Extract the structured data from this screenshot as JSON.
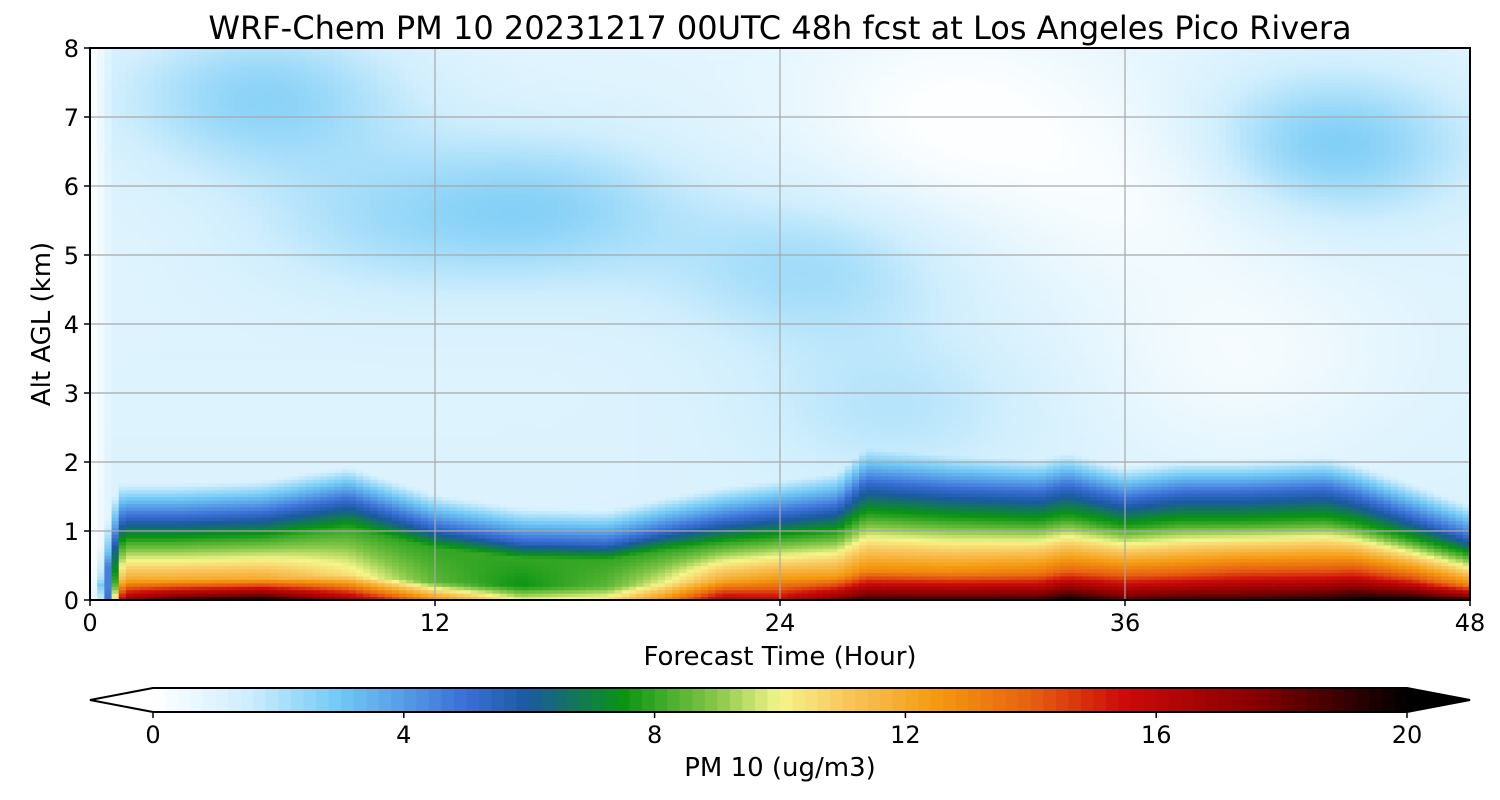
{
  "chart_data": {
    "type": "heatmap",
    "title": "WRF-Chem PM 10  20231217 00UTC 48h fcst at Los Angeles Pico Rivera",
    "xlabel": "Forecast Time (Hour)",
    "ylabel": "Alt AGL (km)",
    "xlim": [
      0,
      48
    ],
    "ylim": [
      0,
      8
    ],
    "x_ticks": [
      "0",
      "12",
      "24",
      "36",
      "48"
    ],
    "y_ticks": [
      "0",
      "1",
      "2",
      "3",
      "4",
      "5",
      "6",
      "7",
      "8"
    ],
    "grid": true,
    "colorbar": {
      "label": "PM 10  (ug/m3)",
      "range": [
        0,
        20
      ],
      "ticks": [
        "0",
        "4",
        "8",
        "12",
        "16",
        "20"
      ],
      "extend": "both",
      "stops": [
        {
          "v": 0,
          "color": "#ffffff"
        },
        {
          "v": 1.5,
          "color": "#cfeefd"
        },
        {
          "v": 3,
          "color": "#70c8f5"
        },
        {
          "v": 5,
          "color": "#3a6fd6"
        },
        {
          "v": 6,
          "color": "#1a5aa0"
        },
        {
          "v": 7.5,
          "color": "#0a9412"
        },
        {
          "v": 9,
          "color": "#88c84a"
        },
        {
          "v": 10,
          "color": "#f5f58a"
        },
        {
          "v": 11,
          "color": "#f8c860"
        },
        {
          "v": 12.5,
          "color": "#f59a10"
        },
        {
          "v": 14,
          "color": "#e66010"
        },
        {
          "v": 15.5,
          "color": "#cc0a0a"
        },
        {
          "v": 17.5,
          "color": "#8a0000"
        },
        {
          "v": 20,
          "color": "#000000"
        }
      ]
    },
    "profile_hours": [
      0,
      0.3,
      0.7,
      1,
      3,
      6,
      9,
      12,
      15,
      18,
      20,
      22,
      24,
      26,
      27,
      30,
      33,
      34,
      36,
      38,
      40,
      43,
      44,
      46,
      48
    ],
    "profile_top_km": [
      0,
      0.2,
      0.8,
      1.2,
      1.2,
      1.25,
      1.45,
      1.05,
      0.85,
      0.82,
      1.0,
      1.15,
      1.25,
      1.35,
      1.7,
      1.6,
      1.55,
      1.65,
      1.45,
      1.55,
      1.55,
      1.6,
      1.5,
      1.2,
      0.9
    ],
    "profile_surface_ugm3": [
      0,
      3,
      10,
      17,
      19,
      20,
      17,
      13,
      10,
      10.5,
      13,
      16.5,
      16,
      18,
      19,
      19,
      19,
      20,
      18.5,
      19,
      19,
      19.5,
      20,
      20,
      19
    ],
    "profile_midlayer_ugm3": [
      0,
      4,
      9,
      12,
      12,
      12,
      10.5,
      8.5,
      7.5,
      8.5,
      10,
      12,
      12.5,
      12.5,
      13,
      13,
      13.5,
      14,
      14,
      14,
      14.5,
      14.5,
      15,
      14.5,
      13
    ],
    "aloft_blobs": [
      {
        "hour": 6,
        "km": 7.3,
        "peak_ugm3": 1.6
      },
      {
        "hour": 16,
        "km": 5.7,
        "peak_ugm3": 1.4
      },
      {
        "hour": 25,
        "km": 4.8,
        "peak_ugm3": 1.2
      },
      {
        "hour": 43,
        "km": 6.6,
        "peak_ugm3": 1.9
      },
      {
        "hour": 10,
        "km": 5.5,
        "peak_ugm3": 0.9
      },
      {
        "hour": 28,
        "km": 2.8,
        "peak_ugm3": 0.8
      }
    ],
    "clean_pockets": [
      {
        "hour": 30,
        "km": 7.0,
        "depth_ugm3": 0.9
      },
      {
        "hour": 37,
        "km": 6.0,
        "depth_ugm3": 0.8
      },
      {
        "hour": 40,
        "km": 3.5,
        "depth_ugm3": 0.7
      }
    ]
  }
}
